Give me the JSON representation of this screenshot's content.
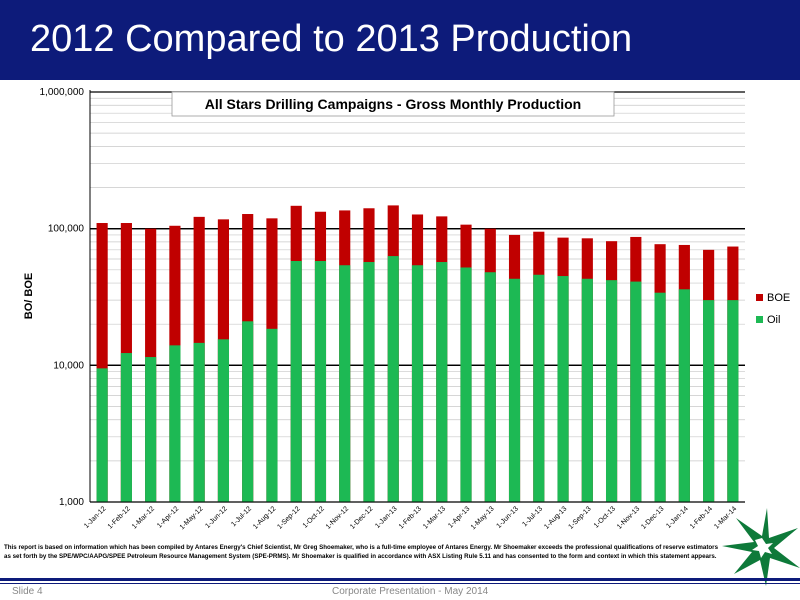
{
  "slide": {
    "title": "2012 Compared to 2013 Production",
    "disclaimer": "This report is based on information which has been compiled by Antares Energy's Chief Scientist, Mr Greg Shoemaker, who is a full-time employee of Antares Energy.  Mr Shoemaker exceeds the professional qualifications of reserve estimators as set forth by the SPE/WPC/AAPG/SPEE Petroleum Resource Management System (SPE-PRMS).  Mr Shoemaker is qualified in accordance with ASX Listing Rule 5.11 and has consented to the form and context in which this statement appears.",
    "footer_slide": "Slide 4",
    "footer_presentation": "Corporate Presentation - May 2014"
  },
  "colors": {
    "title_bar": "#0d1b7a",
    "boe": "#c00000",
    "oil": "#1db954"
  },
  "chart_data": {
    "type": "bar",
    "title": "All Stars Drilling Campaigns - Gross Monthly Production",
    "ylabel": "BO/ BOE",
    "xlabel": "",
    "yscale": "log",
    "ylim": [
      1000,
      1000000
    ],
    "yticks": [
      1000,
      10000,
      100000,
      1000000
    ],
    "ytick_labels": [
      "1,000",
      "10,000",
      "100,000",
      "1,000,000"
    ],
    "grid": "horizontal",
    "legend_position": "right",
    "categories": [
      "1-Jan-12",
      "1-Feb-12",
      "1-Mar-12",
      "1-Apr-12",
      "1-May-12",
      "1-Jun-12",
      "1-Jul-12",
      "1-Aug-12",
      "1-Sep-12",
      "1-Oct-12",
      "1-Nov-12",
      "1-Dec-12",
      "1-Jan-13",
      "1-Feb-13",
      "1-Mar-13",
      "1-Apr-13",
      "1-May-13",
      "1-Jun-13",
      "1-Jul-13",
      "1-Aug-13",
      "1-Sep-13",
      "1-Oct-13",
      "1-Nov-13",
      "1-Dec-13",
      "1-Jan-14",
      "1-Feb-14",
      "1-Mar-14"
    ],
    "series": [
      {
        "name": "BOE",
        "color": "#c00000",
        "values": [
          110000,
          110000,
          100000,
          105000,
          122000,
          117000,
          128000,
          119000,
          147000,
          133000,
          136000,
          141000,
          148000,
          127000,
          123000,
          107000,
          100000,
          90000,
          95000,
          86000,
          85000,
          81000,
          87000,
          77000,
          76000,
          70000,
          74000
        ]
      },
      {
        "name": "Oil",
        "color": "#1db954",
        "values": [
          9500,
          12300,
          11500,
          14000,
          14600,
          15500,
          21000,
          18500,
          58000,
          58000,
          54000,
          57000,
          63000,
          54000,
          57000,
          52000,
          48000,
          43000,
          46000,
          45000,
          43000,
          42000,
          41000,
          34000,
          36000,
          30000,
          30000
        ]
      }
    ]
  }
}
